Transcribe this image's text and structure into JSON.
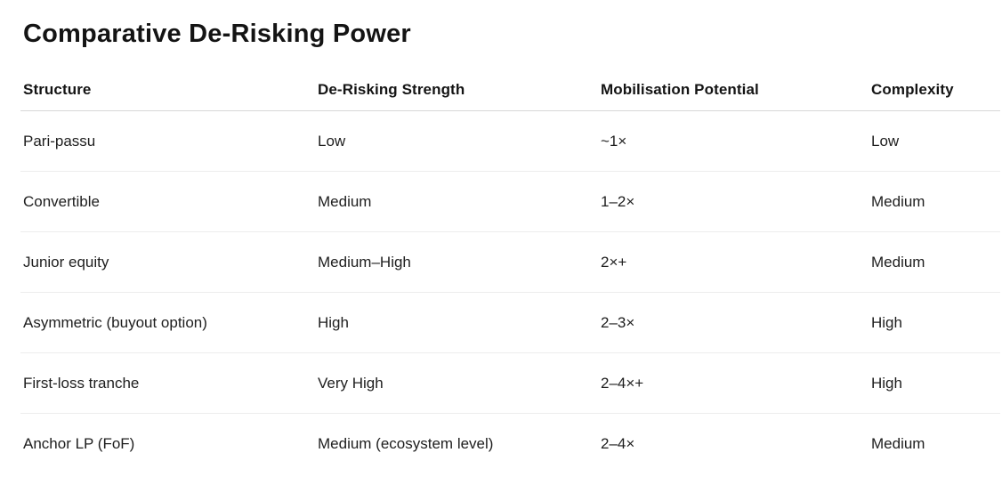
{
  "page": {
    "title": "Comparative De-Risking Power",
    "background_color": "#ffffff",
    "title_color": "#141414",
    "body_text_color": "#1e1e1e",
    "header_divider_color": "#d7d7d7",
    "row_divider_color": "#ededed"
  },
  "table": {
    "columns": [
      "Structure",
      "De-Risking Strength",
      "Mobilisation Potential",
      "Complexity"
    ],
    "rows": [
      {
        "structure": "Pari-passu",
        "strength": "Low",
        "mobilisation": "~1×",
        "complexity": "Low"
      },
      {
        "structure": "Convertible",
        "strength": "Medium",
        "mobilisation": "1–2×",
        "complexity": "Medium"
      },
      {
        "structure": "Junior equity",
        "strength": "Medium–High",
        "mobilisation": "2×+",
        "complexity": "Medium"
      },
      {
        "structure": "Asymmetric (buyout option)",
        "strength": "High",
        "mobilisation": "2–3×",
        "complexity": "High"
      },
      {
        "structure": "First-loss tranche",
        "strength": "Very High",
        "mobilisation": "2–4×+",
        "complexity": "High"
      },
      {
        "structure": "Anchor LP (FoF)",
        "strength": "Medium (ecosystem level)",
        "mobilisation": "2–4×",
        "complexity": "Medium"
      }
    ]
  }
}
